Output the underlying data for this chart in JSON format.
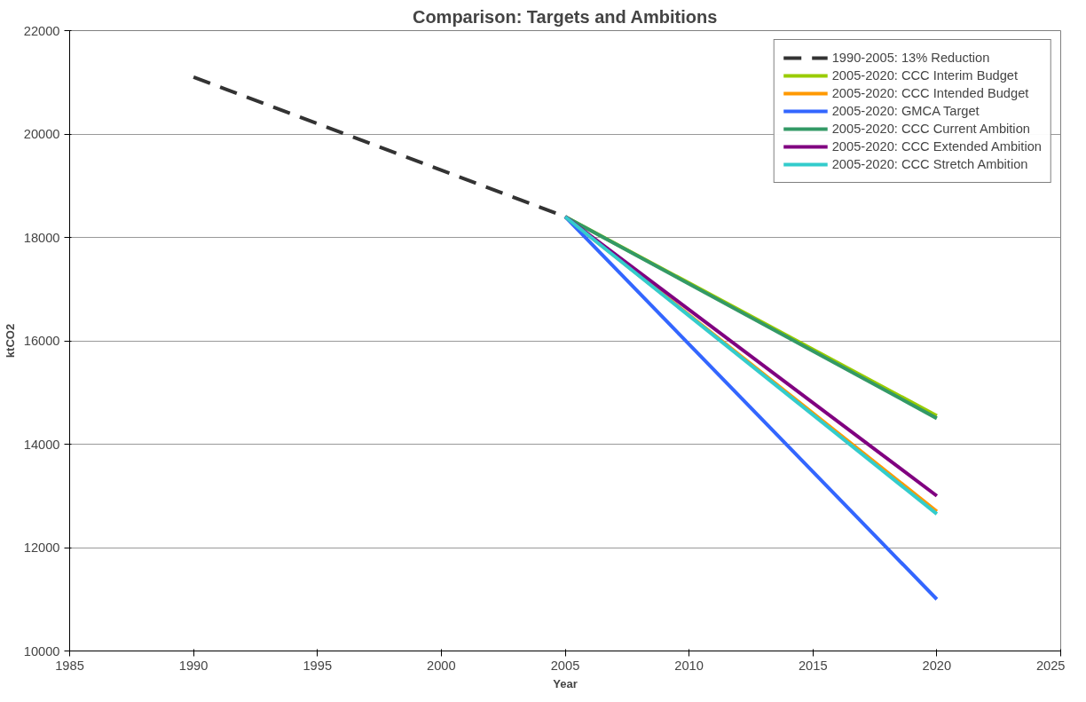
{
  "chart_data": {
    "type": "line",
    "title": "Comparison: Targets and Ambitions",
    "xlabel": "Year",
    "ylabel": "ktCO2",
    "xlim": [
      1985,
      2025
    ],
    "xticks": [
      1985,
      1990,
      1995,
      2000,
      2005,
      2010,
      2015,
      2020,
      2025
    ],
    "ylim": [
      10000,
      22000
    ],
    "yticks": [
      10000,
      12000,
      14000,
      16000,
      18000,
      20000,
      22000
    ],
    "grid": "y",
    "legend": "top right",
    "marker": "none",
    "series": [
      {
        "name": "1990-2005: 13% Reduction",
        "color": "#333333",
        "x": [
          1990,
          2005
        ],
        "values": [
          21100,
          18400
        ],
        "line_style": "dashed"
      },
      {
        "name": "2005-2020: CCC Interim Budget",
        "color": "#99cc00",
        "x": [
          2005,
          2020
        ],
        "values": [
          18400,
          14550
        ]
      },
      {
        "name": "2005-2020: CCC Intended Budget",
        "color": "#ff9900",
        "x": [
          2005,
          2020
        ],
        "values": [
          18400,
          12700
        ]
      },
      {
        "name": "2005-2020: GMCA Target",
        "color": "#3366ff",
        "x": [
          2005,
          2020
        ],
        "values": [
          18400,
          11000
        ]
      },
      {
        "name": "2005-2020: CCC Current Ambition",
        "color": "#339966",
        "x": [
          2005,
          2020
        ],
        "values": [
          18400,
          14500
        ]
      },
      {
        "name": "2005-2020: CCC Extended Ambition",
        "color": "#800080",
        "x": [
          2005,
          2020
        ],
        "values": [
          18400,
          13000
        ]
      },
      {
        "name": "2005-2020: CCC Stretch Ambition",
        "color": "#33cccc",
        "x": [
          2005,
          2020
        ],
        "values": [
          18400,
          12650
        ]
      }
    ]
  }
}
